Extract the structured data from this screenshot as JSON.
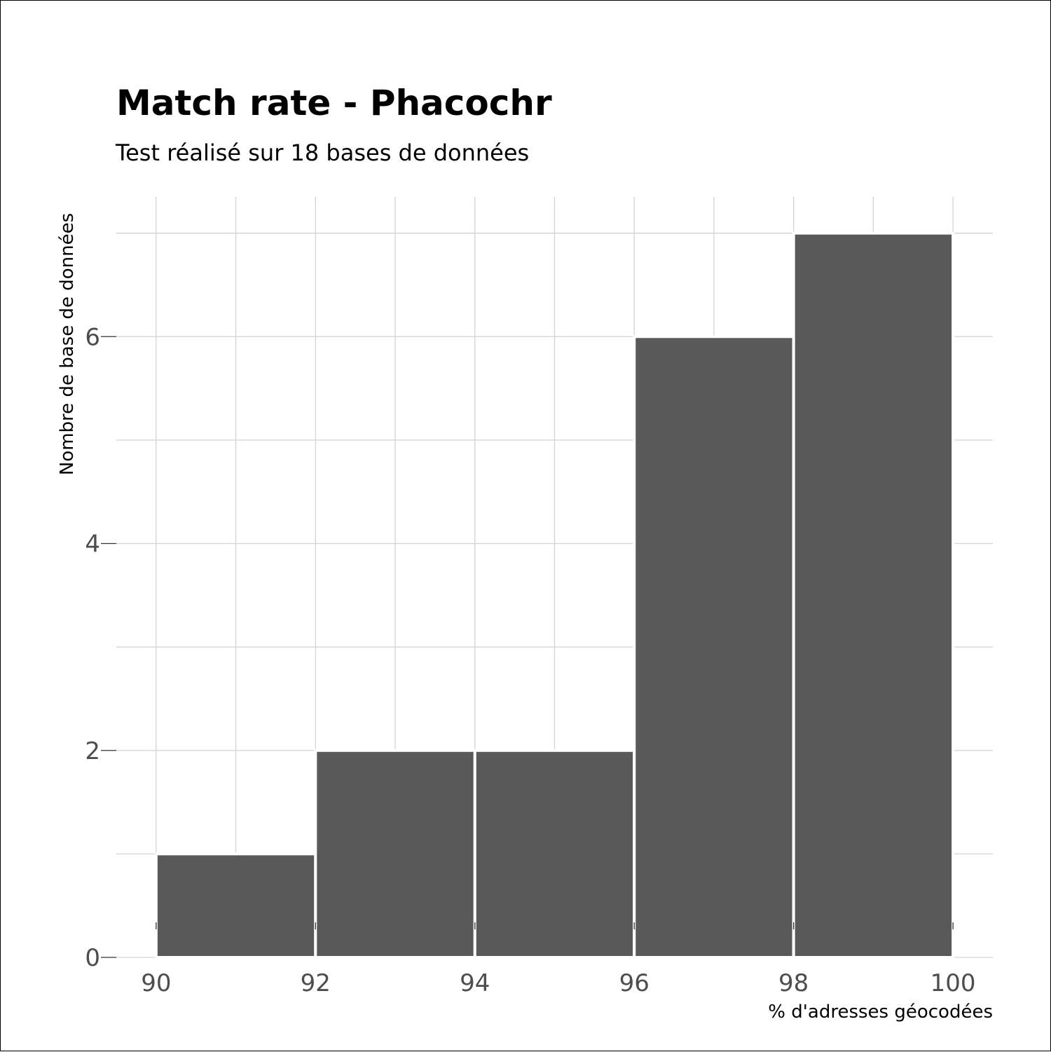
{
  "chart_data": {
    "type": "bar",
    "histogram": true,
    "title": "Match rate - Phacochr",
    "subtitle": "Test réalisé sur 18 bases de données",
    "xlabel": "% d'adresses géocodées",
    "ylabel": "Nombre de base de données",
    "bins": [
      {
        "x0": 90,
        "x1": 92,
        "value": 1
      },
      {
        "x0": 92,
        "x1": 94,
        "value": 2
      },
      {
        "x0": 94,
        "x1": 96,
        "value": 2
      },
      {
        "x0": 96,
        "x1": 98,
        "value": 6
      },
      {
        "x0": 98,
        "x1": 100,
        "value": 7
      }
    ],
    "xlim": [
      89.5,
      100.5
    ],
    "ylim": [
      0,
      7.35
    ],
    "xticks": [
      90,
      92,
      94,
      96,
      98,
      100
    ],
    "xtick_labels": [
      "90",
      "92",
      "94",
      "96",
      "98",
      "100"
    ],
    "yticks": [
      0,
      2,
      4,
      6
    ],
    "ytick_labels": [
      "0",
      "2",
      "4",
      "6"
    ],
    "x_minor_grid": [
      91,
      93,
      95,
      97,
      99
    ],
    "y_minor_grid": [
      1,
      3,
      5,
      7
    ],
    "grid": true,
    "bar_color": "#595959",
    "bar_edge_color": "#ffffff",
    "grid_color": "#d3d3d3"
  }
}
